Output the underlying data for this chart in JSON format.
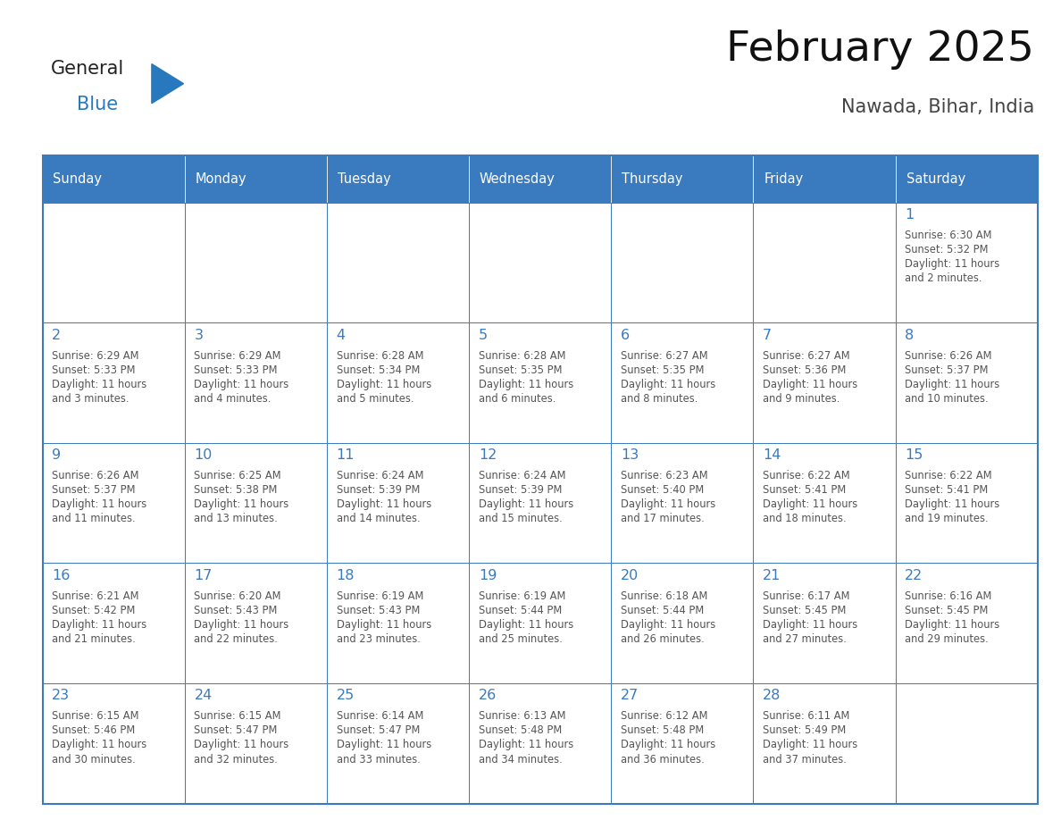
{
  "title": "February 2025",
  "subtitle": "Nawada, Bihar, India",
  "header_bg": "#3a7abf",
  "header_text_color": "#ffffff",
  "border_color": "#3a7abf",
  "text_color": "#555555",
  "day_number_color": "#3a7abf",
  "days_of_week": [
    "Sunday",
    "Monday",
    "Tuesday",
    "Wednesday",
    "Thursday",
    "Friday",
    "Saturday"
  ],
  "calendar": [
    [
      null,
      null,
      null,
      null,
      null,
      null,
      {
        "day": 1,
        "sunrise": "6:30 AM",
        "sunset": "5:32 PM",
        "daylight": "11 hours and 2 minutes."
      }
    ],
    [
      {
        "day": 2,
        "sunrise": "6:29 AM",
        "sunset": "5:33 PM",
        "daylight": "11 hours and 3 minutes."
      },
      {
        "day": 3,
        "sunrise": "6:29 AM",
        "sunset": "5:33 PM",
        "daylight": "11 hours and 4 minutes."
      },
      {
        "day": 4,
        "sunrise": "6:28 AM",
        "sunset": "5:34 PM",
        "daylight": "11 hours and 5 minutes."
      },
      {
        "day": 5,
        "sunrise": "6:28 AM",
        "sunset": "5:35 PM",
        "daylight": "11 hours and 6 minutes."
      },
      {
        "day": 6,
        "sunrise": "6:27 AM",
        "sunset": "5:35 PM",
        "daylight": "11 hours and 8 minutes."
      },
      {
        "day": 7,
        "sunrise": "6:27 AM",
        "sunset": "5:36 PM",
        "daylight": "11 hours and 9 minutes."
      },
      {
        "day": 8,
        "sunrise": "6:26 AM",
        "sunset": "5:37 PM",
        "daylight": "11 hours and 10 minutes."
      }
    ],
    [
      {
        "day": 9,
        "sunrise": "6:26 AM",
        "sunset": "5:37 PM",
        "daylight": "11 hours and 11 minutes."
      },
      {
        "day": 10,
        "sunrise": "6:25 AM",
        "sunset": "5:38 PM",
        "daylight": "11 hours and 13 minutes."
      },
      {
        "day": 11,
        "sunrise": "6:24 AM",
        "sunset": "5:39 PM",
        "daylight": "11 hours and 14 minutes."
      },
      {
        "day": 12,
        "sunrise": "6:24 AM",
        "sunset": "5:39 PM",
        "daylight": "11 hours and 15 minutes."
      },
      {
        "day": 13,
        "sunrise": "6:23 AM",
        "sunset": "5:40 PM",
        "daylight": "11 hours and 17 minutes."
      },
      {
        "day": 14,
        "sunrise": "6:22 AM",
        "sunset": "5:41 PM",
        "daylight": "11 hours and 18 minutes."
      },
      {
        "day": 15,
        "sunrise": "6:22 AM",
        "sunset": "5:41 PM",
        "daylight": "11 hours and 19 minutes."
      }
    ],
    [
      {
        "day": 16,
        "sunrise": "6:21 AM",
        "sunset": "5:42 PM",
        "daylight": "11 hours and 21 minutes."
      },
      {
        "day": 17,
        "sunrise": "6:20 AM",
        "sunset": "5:43 PM",
        "daylight": "11 hours and 22 minutes."
      },
      {
        "day": 18,
        "sunrise": "6:19 AM",
        "sunset": "5:43 PM",
        "daylight": "11 hours and 23 minutes."
      },
      {
        "day": 19,
        "sunrise": "6:19 AM",
        "sunset": "5:44 PM",
        "daylight": "11 hours and 25 minutes."
      },
      {
        "day": 20,
        "sunrise": "6:18 AM",
        "sunset": "5:44 PM",
        "daylight": "11 hours and 26 minutes."
      },
      {
        "day": 21,
        "sunrise": "6:17 AM",
        "sunset": "5:45 PM",
        "daylight": "11 hours and 27 minutes."
      },
      {
        "day": 22,
        "sunrise": "6:16 AM",
        "sunset": "5:45 PM",
        "daylight": "11 hours and 29 minutes."
      }
    ],
    [
      {
        "day": 23,
        "sunrise": "6:15 AM",
        "sunset": "5:46 PM",
        "daylight": "11 hours and 30 minutes."
      },
      {
        "day": 24,
        "sunrise": "6:15 AM",
        "sunset": "5:47 PM",
        "daylight": "11 hours and 32 minutes."
      },
      {
        "day": 25,
        "sunrise": "6:14 AM",
        "sunset": "5:47 PM",
        "daylight": "11 hours and 33 minutes."
      },
      {
        "day": 26,
        "sunrise": "6:13 AM",
        "sunset": "5:48 PM",
        "daylight": "11 hours and 34 minutes."
      },
      {
        "day": 27,
        "sunrise": "6:12 AM",
        "sunset": "5:48 PM",
        "daylight": "11 hours and 36 minutes."
      },
      {
        "day": 28,
        "sunrise": "6:11 AM",
        "sunset": "5:49 PM",
        "daylight": "11 hours and 37 minutes."
      },
      null
    ]
  ],
  "logo_general_color": "#222222",
  "logo_blue_color": "#2878be",
  "logo_triangle_color": "#2878be"
}
